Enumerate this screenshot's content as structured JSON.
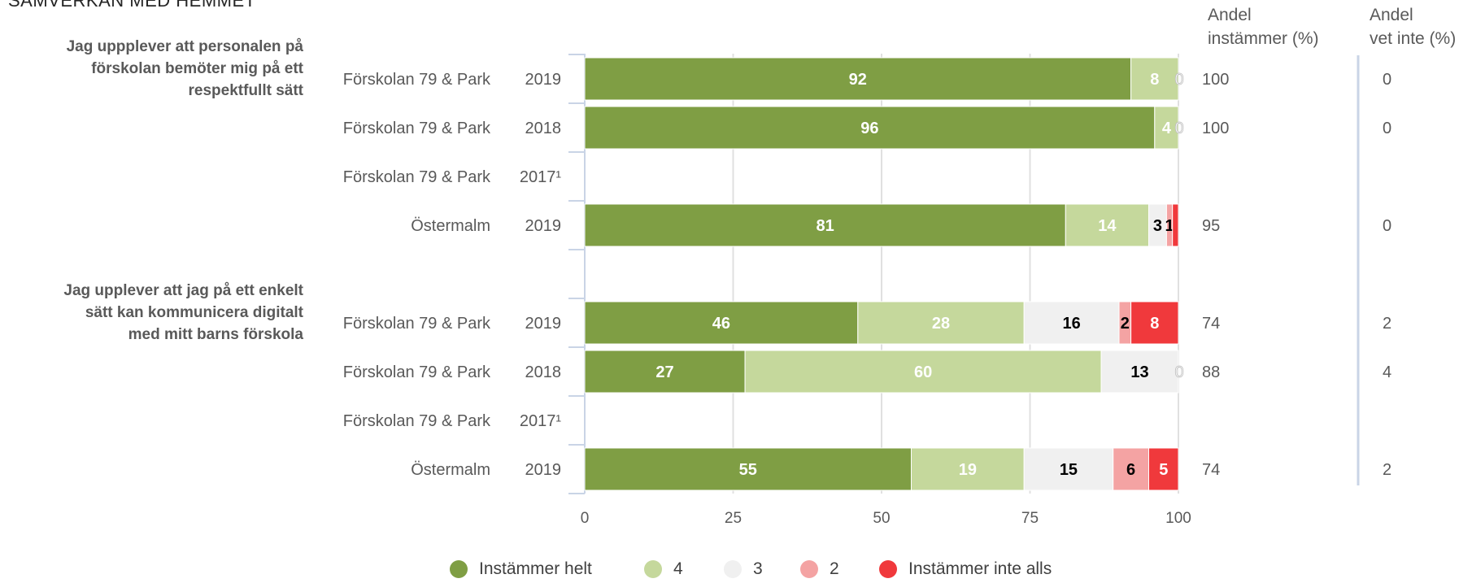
{
  "page": {
    "title": "SAMVERKAN MED HEMMET"
  },
  "columns": {
    "agree": {
      "line1": "Andel",
      "line2": "instämmer (%)"
    },
    "dontknow": {
      "line1": "Andel",
      "line2": "vet inte (%)"
    }
  },
  "legend": [
    {
      "label": "Instämmer helt",
      "color": "#7f9e44"
    },
    {
      "label": "4",
      "color": "#c5d89c"
    },
    {
      "label": "3",
      "color": "#f0f0f0"
    },
    {
      "label": "2",
      "color": "#f4a3a3"
    },
    {
      "label": "Instämmer inte alls",
      "color": "#f0393c"
    }
  ],
  "chart_data": {
    "type": "bar",
    "orientation": "horizontal",
    "stacked": true,
    "xlim": [
      0,
      100
    ],
    "xticks": [
      "0",
      "25",
      "50",
      "75",
      "100"
    ],
    "grid": true,
    "legend_position": "bottom",
    "series_names": [
      "Instämmer helt",
      "4",
      "3",
      "2",
      "Instämmer inte alls"
    ],
    "series_colors": [
      "#7f9e44",
      "#c5d89c",
      "#f0f0f0",
      "#f4a3a3",
      "#f0393c"
    ],
    "label_colors": [
      "#ffffff",
      "#ffffff",
      "#000000",
      "#000000",
      "#ffffff"
    ],
    "groups": [
      {
        "question": [
          "Jag uppplever att personalen på",
          "förskolan bemöter mig på ett",
          "respektfullt sätt"
        ],
        "rows": [
          {
            "unit": "Förskolan 79 & Park",
            "year": "2019",
            "values": [
              92,
              8,
              0,
              0,
              0
            ],
            "labels": [
              "92",
              "8",
              "0",
              "",
              ""
            ],
            "agree": "100",
            "dontknow": "0"
          },
          {
            "unit": "Förskolan 79 & Park",
            "year": "2018",
            "values": [
              96,
              4,
              0,
              0,
              0
            ],
            "labels": [
              "96",
              "4",
              "0",
              "",
              ""
            ],
            "agree": "100",
            "dontknow": "0"
          },
          {
            "unit": "Förskolan 79 & Park",
            "year": "2017¹",
            "values": null,
            "labels": null,
            "agree": "",
            "dontknow": ""
          },
          {
            "unit": "Östermalm",
            "year": "2019",
            "values": [
              81,
              14,
              3,
              1,
              1
            ],
            "labels": [
              "81",
              "14",
              "3",
              "1",
              ""
            ],
            "agree": "95",
            "dontknow": "0"
          }
        ]
      },
      {
        "question": [
          "Jag upplever att jag på ett enkelt",
          "sätt kan kommunicera digitalt",
          "med mitt barns förskola"
        ],
        "rows": [
          {
            "unit": "Förskolan 79 & Park",
            "year": "2019",
            "values": [
              46,
              28,
              16,
              2,
              8
            ],
            "labels": [
              "46",
              "28",
              "16",
              "2",
              "8"
            ],
            "agree": "74",
            "dontknow": "2"
          },
          {
            "unit": "Förskolan 79 & Park",
            "year": "2018",
            "values": [
              27,
              60,
              13,
              0,
              0
            ],
            "labels": [
              "27",
              "60",
              "13",
              "0",
              ""
            ],
            "agree": "88",
            "dontknow": "4"
          },
          {
            "unit": "Förskolan 79 & Park",
            "year": "2017¹",
            "values": null,
            "labels": null,
            "agree": "",
            "dontknow": ""
          },
          {
            "unit": "Östermalm",
            "year": "2019",
            "values": [
              55,
              19,
              15,
              6,
              5
            ],
            "labels": [
              "55",
              "19",
              "15",
              "6",
              "5"
            ],
            "agree": "74",
            "dontknow": "2"
          }
        ]
      }
    ]
  }
}
